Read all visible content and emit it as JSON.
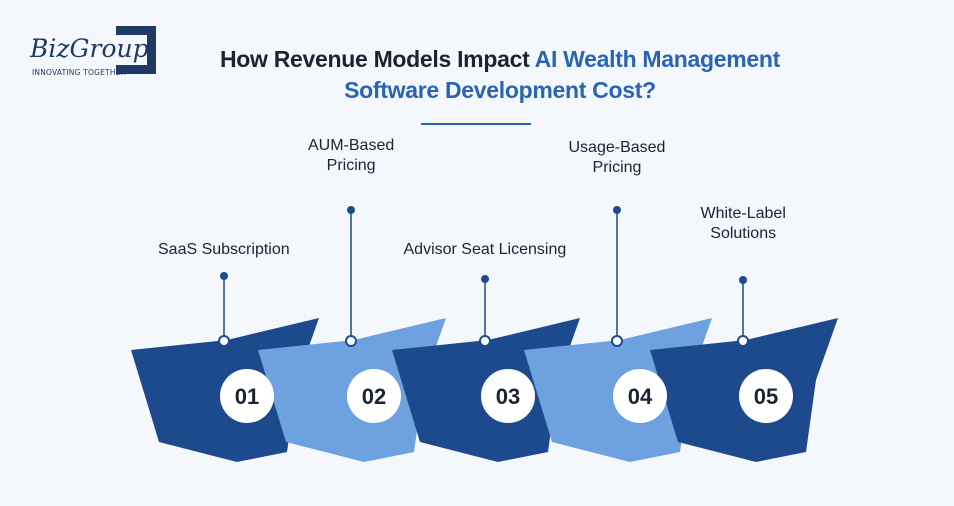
{
  "logo": {
    "name": "BizGroup",
    "tagline": "INNOVATING TOGETHER"
  },
  "title": {
    "part1": "How Revenue Models Impact ",
    "part2": "AI Wealth Management Software Development Cost?"
  },
  "steps": [
    {
      "number": "01",
      "label_lines": [
        "SaaS Subscription"
      ],
      "color": "#1d4a8d"
    },
    {
      "number": "02",
      "label_lines": [
        "AUM-Based",
        "Pricing"
      ],
      "color": "#6ea1df"
    },
    {
      "number": "03",
      "label_lines": [
        "Advisor Seat Licensing"
      ],
      "color": "#1d4a8d"
    },
    {
      "number": "04",
      "label_lines": [
        "Usage-Based",
        "Pricing"
      ],
      "color": "#6ea1df"
    },
    {
      "number": "05",
      "label_lines": [
        "White-Label",
        "Solutions"
      ],
      "color": "#1d4a8d"
    }
  ],
  "colors": {
    "dark": "#1d4a8d",
    "light": "#6ea1df",
    "accent": "#2a64b4",
    "text": "#1a2433"
  }
}
